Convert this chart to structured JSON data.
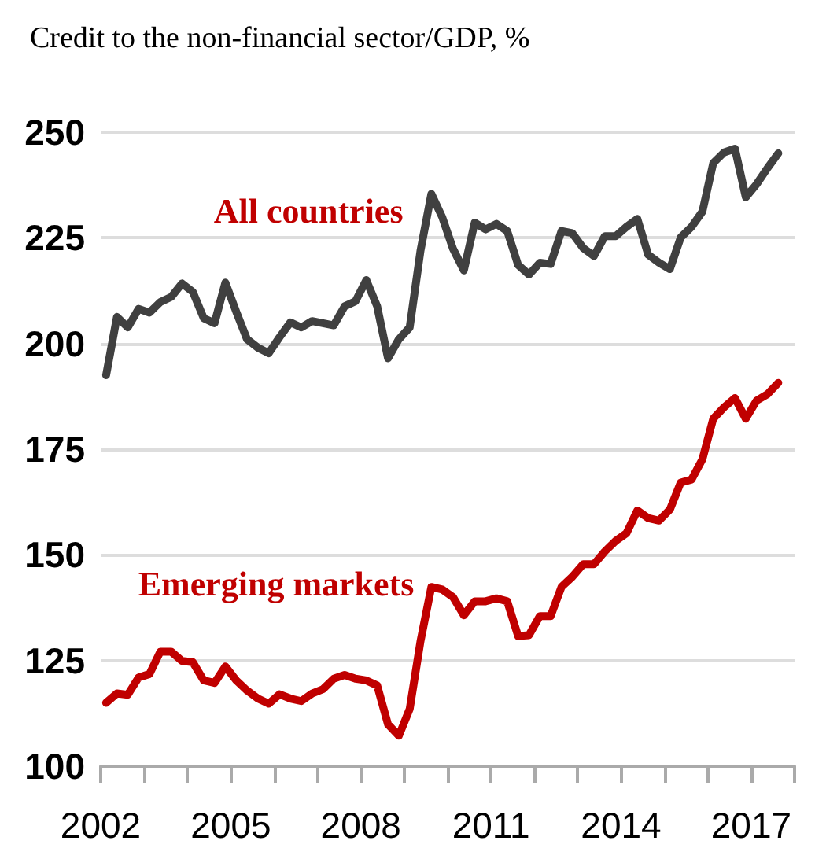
{
  "chart_data": {
    "type": "line",
    "title": "Credit to the non‑financial sector/GDP, %",
    "x": [
      2002.125,
      2002.375,
      2002.625,
      2002.875,
      2003.125,
      2003.375,
      2003.625,
      2003.875,
      2004.125,
      2004.375,
      2004.625,
      2004.875,
      2005.125,
      2005.375,
      2005.625,
      2005.875,
      2006.125,
      2006.375,
      2006.625,
      2006.875,
      2007.125,
      2007.375,
      2007.625,
      2007.875,
      2008.125,
      2008.375,
      2008.625,
      2008.875,
      2009.125,
      2009.375,
      2009.625,
      2009.875,
      2010.125,
      2010.375,
      2010.625,
      2010.875,
      2011.125,
      2011.375,
      2011.625,
      2011.875,
      2012.125,
      2012.375,
      2012.625,
      2012.875,
      2013.125,
      2013.375,
      2013.625,
      2013.875,
      2014.125,
      2014.375,
      2014.625,
      2014.875,
      2015.125,
      2015.375,
      2015.625,
      2015.875,
      2016.125,
      2016.375,
      2016.625,
      2016.875,
      2017.125,
      2017.375,
      2017.625
    ],
    "series": [
      {
        "name": "All countries",
        "color": "#404040",
        "values": [
          192.5,
          206.3,
          203.8,
          208.2,
          207.3,
          209.8,
          211,
          214.2,
          212.2,
          206,
          204.8,
          214.4,
          207.5,
          201,
          199,
          197.7,
          201.5,
          205,
          203.8,
          205.3,
          204.8,
          204.3,
          208.8,
          210,
          215,
          208.8,
          196.5,
          201,
          203.8,
          222,
          235.4,
          229.9,
          222.4,
          217.3,
          228.6,
          227,
          228.3,
          226.6,
          218.6,
          216.3,
          219.1,
          218.8,
          226.6,
          226.1,
          222.6,
          220.7,
          225.4,
          225.4,
          227.6,
          229.5,
          221,
          219.1,
          217.6,
          225.1,
          227.6,
          231.2,
          242.7,
          245.2,
          246.1,
          234.6,
          237.7,
          241.5,
          245
        ]
      },
      {
        "name": "Emerging markets",
        "color": "#c00000",
        "values": [
          115,
          117.2,
          116.9,
          121,
          121.8,
          127.1,
          127.1,
          124.9,
          124.6,
          120.3,
          119.7,
          123.6,
          120.3,
          117.9,
          116,
          114.8,
          117,
          116,
          115.4,
          117.2,
          118.2,
          120.7,
          121.6,
          120.7,
          120.3,
          119.1,
          109.9,
          107.2,
          113.5,
          129.6,
          142.4,
          141.8,
          140,
          135.7,
          139,
          139,
          139.7,
          139,
          130.8,
          131,
          135.5,
          135.5,
          142.4,
          144.8,
          147.8,
          147.8,
          150.8,
          153.3,
          155.1,
          160.5,
          158.7,
          158.1,
          160.7,
          167.1,
          167.8,
          172.6,
          182.2,
          184.9,
          187.1,
          182.2,
          186.5,
          188,
          190.7
        ]
      }
    ],
    "xlim": [
      2002,
      2018
    ],
    "xticks": [
      {
        "value": 2002,
        "label": "2002"
      },
      {
        "value": 2003,
        "label": null
      },
      {
        "value": 2004,
        "label": null
      },
      {
        "value": 2005,
        "label": "2005"
      },
      {
        "value": 2006,
        "label": null
      },
      {
        "value": 2007,
        "label": null
      },
      {
        "value": 2008,
        "label": "2008"
      },
      {
        "value": 2009,
        "label": null
      },
      {
        "value": 2010,
        "label": null
      },
      {
        "value": 2011,
        "label": "2011"
      },
      {
        "value": 2012,
        "label": null
      },
      {
        "value": 2013,
        "label": null
      },
      {
        "value": 2014,
        "label": "2014"
      },
      {
        "value": 2015,
        "label": null
      },
      {
        "value": 2016,
        "label": null
      },
      {
        "value": 2017,
        "label": "2017"
      },
      {
        "value": 2018,
        "label": null
      }
    ],
    "ylim": [
      100,
      250
    ],
    "yticks": [
      100,
      125,
      150,
      175,
      200,
      225,
      250
    ],
    "grid": "y",
    "legend": false,
    "marker": "none",
    "line_style": "solid"
  }
}
